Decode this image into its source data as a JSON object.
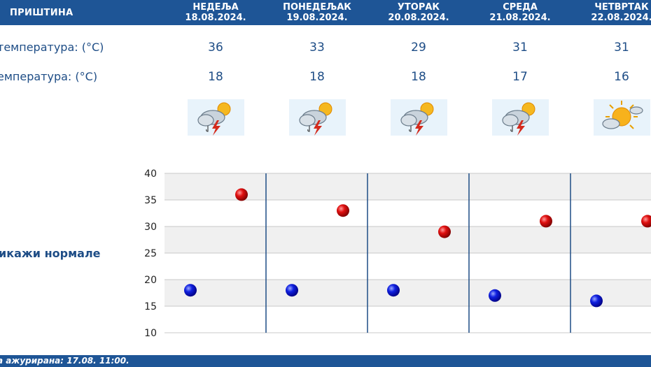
{
  "header": {
    "city": "ПРИШТИНА",
    "days": [
      {
        "name": "НЕДЕЉА",
        "date": "18.08.2024."
      },
      {
        "name": "ПОНЕДЕЉАК",
        "date": "19.08.2024."
      },
      {
        "name": "УТОРАК",
        "date": "20.08.2024."
      },
      {
        "name": "СРЕДА",
        "date": "21.08.2024."
      },
      {
        "name": "ЧЕТВРТАК",
        "date": "22.08.2024."
      }
    ]
  },
  "rows": {
    "max_label": "температура: (°C)",
    "min_label": "емпература: (°C)",
    "icon_label": ":",
    "max_values": [
      "36",
      "33",
      "29",
      "31",
      "31"
    ],
    "min_values": [
      "18",
      "18",
      "18",
      "17",
      "16"
    ],
    "icons": [
      "storm-cloud-sun-icon",
      "storm-cloud-sun-icon",
      "storm-cloud-sun-icon",
      "storm-cloud-sun-icon",
      "partly-sunny-icon"
    ]
  },
  "normals_link": "икажи нормале",
  "footer": {
    "updated_text": "а ажурирана:  17.08.  11:00."
  },
  "colors": {
    "brand": "#1e5596",
    "max_marker": "#cc0000",
    "min_marker": "#0000cc"
  },
  "chart_data": {
    "type": "scatter",
    "categories": [
      "18.08.2024.",
      "19.08.2024.",
      "20.08.2024.",
      "21.08.2024.",
      "22.08.2024."
    ],
    "series": [
      {
        "values": [
          36,
          33,
          29,
          31,
          31
        ]
      },
      {
        "values": [
          18,
          18,
          18,
          17,
          16
        ]
      }
    ],
    "yticks": [
      "40",
      "35",
      "30",
      "25",
      "20",
      "15",
      "10"
    ],
    "ylim": [
      10,
      40
    ],
    "grid": true
  }
}
